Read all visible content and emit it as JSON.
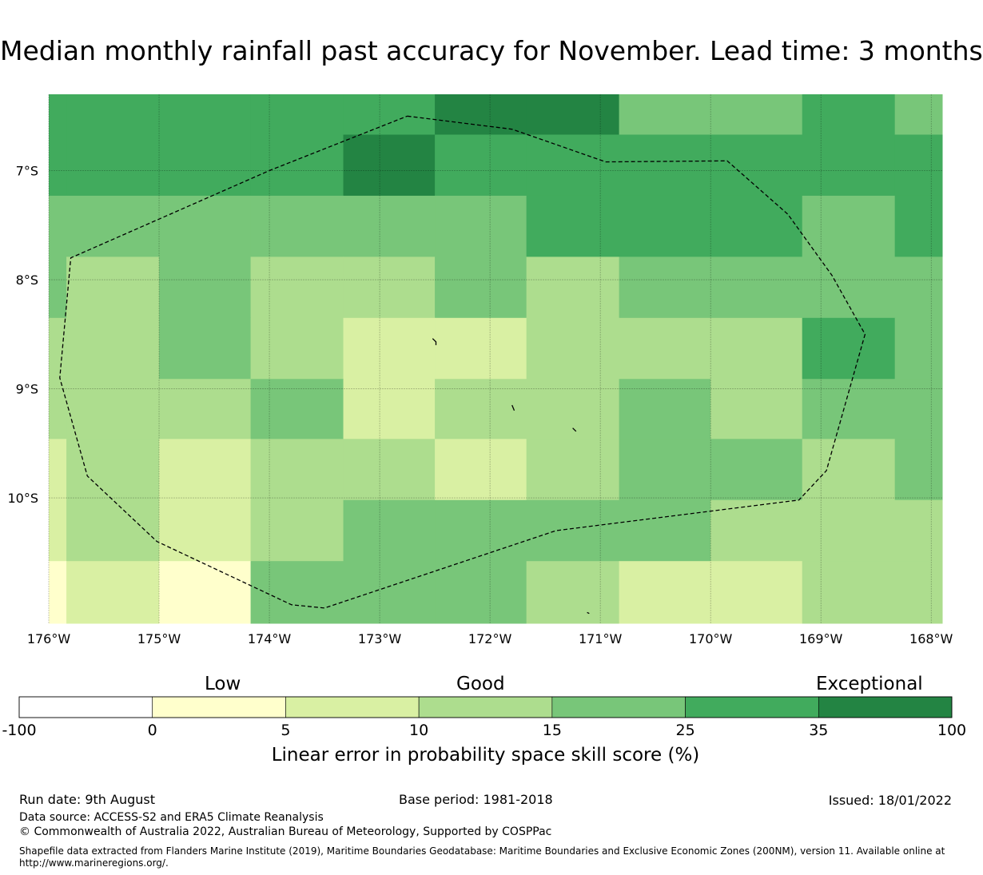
{
  "title": "Median monthly rainfall past accuracy for November. Lead time: 3 months",
  "map": {
    "lon_range": [
      -176.0,
      -167.9
    ],
    "lat_range": [
      -11.15,
      -6.3
    ],
    "lon_ticks": [
      {
        "value": -176,
        "label": "176°W"
      },
      {
        "value": -175,
        "label": "175°W"
      },
      {
        "value": -174,
        "label": "174°W"
      },
      {
        "value": -173,
        "label": "173°W"
      },
      {
        "value": -172,
        "label": "172°W"
      },
      {
        "value": -171,
        "label": "171°W"
      },
      {
        "value": -170,
        "label": "170°W"
      },
      {
        "value": -169,
        "label": "169°W"
      },
      {
        "value": -168,
        "label": "168°W"
      }
    ],
    "lat_ticks": [
      {
        "value": -7,
        "label": "7°S"
      },
      {
        "value": -8,
        "label": "8°S"
      },
      {
        "value": -9,
        "label": "9°S"
      },
      {
        "value": -10,
        "label": "10°S"
      }
    ],
    "grid_lon_edges": [
      -176.0,
      -175.84,
      -175.0,
      -174.17,
      -173.33,
      -172.5,
      -171.67,
      -170.83,
      -170.0,
      -169.17,
      -168.33,
      -167.9
    ],
    "grid_lat_edges": [
      -6.3,
      -6.67,
      -7.23,
      -7.79,
      -8.35,
      -8.91,
      -9.46,
      -10.02,
      -10.58,
      -11.15
    ],
    "skill_class_grid": [
      [
        5,
        5,
        5,
        5,
        5,
        6,
        6,
        4,
        4,
        5,
        4
      ],
      [
        5,
        5,
        5,
        5,
        6,
        5,
        5,
        5,
        5,
        5,
        5
      ],
      [
        4,
        4,
        4,
        4,
        4,
        4,
        5,
        5,
        5,
        4,
        5
      ],
      [
        4,
        3,
        4,
        3,
        3,
        4,
        3,
        4,
        4,
        4,
        4
      ],
      [
        3,
        3,
        4,
        3,
        2,
        2,
        3,
        3,
        3,
        5,
        4
      ],
      [
        3,
        3,
        3,
        4,
        2,
        3,
        3,
        4,
        3,
        4,
        4
      ],
      [
        2,
        3,
        2,
        3,
        3,
        2,
        3,
        4,
        4,
        3,
        4
      ],
      [
        2,
        3,
        2,
        3,
        4,
        4,
        4,
        4,
        3,
        3,
        3
      ],
      [
        1,
        2,
        1,
        4,
        4,
        4,
        3,
        2,
        2,
        3,
        3
      ]
    ],
    "eez_boundary": [
      [
        -172.75,
        -6.5
      ],
      [
        -171.8,
        -6.62
      ],
      [
        -170.95,
        -6.92
      ],
      [
        -169.85,
        -6.91
      ],
      [
        -169.3,
        -7.4
      ],
      [
        -168.9,
        -7.96
      ],
      [
        -168.6,
        -8.5
      ],
      [
        -168.95,
        -9.75
      ],
      [
        -169.2,
        -10.02
      ],
      [
        -171.4,
        -10.3
      ],
      [
        -173.5,
        -11.01
      ],
      [
        -173.8,
        -10.98
      ],
      [
        -175.02,
        -10.4
      ],
      [
        -175.65,
        -9.8
      ],
      [
        -175.9,
        -8.9
      ],
      [
        -175.8,
        -7.8
      ],
      [
        -174.0,
        -7.0
      ],
      [
        -172.75,
        -6.5
      ]
    ],
    "islands": [
      [
        [
          -172.52,
          -8.54
        ],
        [
          -172.49,
          -8.57
        ],
        [
          -172.49,
          -8.6
        ]
      ],
      [
        [
          -171.8,
          -9.15
        ],
        [
          -171.78,
          -9.2
        ]
      ],
      [
        [
          -171.25,
          -9.36
        ],
        [
          -171.22,
          -9.39
        ]
      ],
      [
        [
          -171.12,
          -11.05
        ],
        [
          -171.1,
          -11.06
        ]
      ]
    ]
  },
  "colorbar": {
    "categories": [
      {
        "label": "Low"
      },
      {
        "label": "Good"
      },
      {
        "label": "Exceptional"
      }
    ],
    "ticks": [
      "-100",
      "0",
      "5",
      "10",
      "15",
      "25",
      "35",
      "100"
    ],
    "colors": [
      "#ffffff",
      "#ffffcc",
      "#d9f0a3",
      "#addd8e",
      "#78c679",
      "#41ab5d",
      "#238443"
    ],
    "label": "Linear error in probability space skill score (%)"
  },
  "footer": {
    "run_date": "Run date: 9th August",
    "base_period": "Base period: 1981-2018",
    "issued": "Issued: 18/01/2022",
    "data_source": "Data source: ACCESS-S2 and ERA5 Climate Reanalysis",
    "copyright": "© Commonwealth of Australia 2022, Australian Bureau of Meteorology, Supported by COSPPac",
    "shapefile": "Shapefile data extracted from Flanders Marine Institute (2019), Maritime Boundaries Geodatabase: Maritime Boundaries and Exclusive Economic Zones (200NM), version 11. Available online at http://www.marineregions.org/."
  }
}
